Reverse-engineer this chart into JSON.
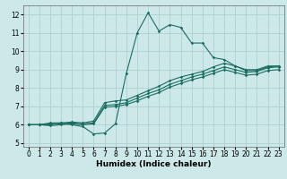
{
  "xlabel": "Humidex (Indice chaleur)",
  "xlim": [
    -0.5,
    23.5
  ],
  "ylim": [
    4.8,
    12.5
  ],
  "xticks": [
    0,
    1,
    2,
    3,
    4,
    5,
    6,
    7,
    8,
    9,
    10,
    11,
    12,
    13,
    14,
    15,
    16,
    17,
    18,
    19,
    20,
    21,
    22,
    23
  ],
  "yticks": [
    5,
    6,
    7,
    8,
    9,
    10,
    11,
    12
  ],
  "background_color": "#cce8e8",
  "grid_color": "#aacccc",
  "line_color": "#1a6e60",
  "lines": [
    {
      "x": [
        0,
        1,
        2,
        3,
        4,
        5,
        6,
        7,
        8,
        9,
        10,
        11,
        12,
        13,
        14,
        15,
        16,
        17,
        18,
        19,
        20,
        21,
        22,
        23
      ],
      "y": [
        6.0,
        6.0,
        6.1,
        6.1,
        6.0,
        5.9,
        5.5,
        5.55,
        6.05,
        8.8,
        11.0,
        12.1,
        11.1,
        11.45,
        11.3,
        10.45,
        10.45,
        9.65,
        9.55,
        9.2,
        8.95,
        8.95,
        9.15,
        9.2
      ]
    },
    {
      "x": [
        0,
        1,
        2,
        3,
        4,
        5,
        6,
        7,
        8,
        9,
        10,
        11,
        12,
        13,
        14,
        15,
        16,
        17,
        18,
        19,
        20,
        21,
        22,
        23
      ],
      "y": [
        6.0,
        6.0,
        6.05,
        6.1,
        6.15,
        6.1,
        6.2,
        7.2,
        7.3,
        7.35,
        7.6,
        7.85,
        8.1,
        8.4,
        8.6,
        8.75,
        8.9,
        9.15,
        9.35,
        9.2,
        9.0,
        9.0,
        9.2,
        9.2
      ]
    },
    {
      "x": [
        0,
        1,
        2,
        3,
        4,
        5,
        6,
        7,
        8,
        9,
        10,
        11,
        12,
        13,
        14,
        15,
        16,
        17,
        18,
        19,
        20,
        21,
        22,
        23
      ],
      "y": [
        6.0,
        6.0,
        6.0,
        6.05,
        6.1,
        6.05,
        6.1,
        7.05,
        7.1,
        7.2,
        7.45,
        7.7,
        7.9,
        8.2,
        8.4,
        8.6,
        8.75,
        8.95,
        9.15,
        9.0,
        8.85,
        8.9,
        9.1,
        9.15
      ]
    },
    {
      "x": [
        0,
        1,
        2,
        3,
        4,
        5,
        6,
        7,
        8,
        9,
        10,
        11,
        12,
        13,
        14,
        15,
        16,
        17,
        18,
        19,
        20,
        21,
        22,
        23
      ],
      "y": [
        6.0,
        6.0,
        5.95,
        6.0,
        6.05,
        6.0,
        6.05,
        6.95,
        7.0,
        7.1,
        7.3,
        7.55,
        7.75,
        8.05,
        8.25,
        8.45,
        8.6,
        8.8,
        9.0,
        8.85,
        8.7,
        8.75,
        8.95,
        9.0
      ]
    }
  ]
}
